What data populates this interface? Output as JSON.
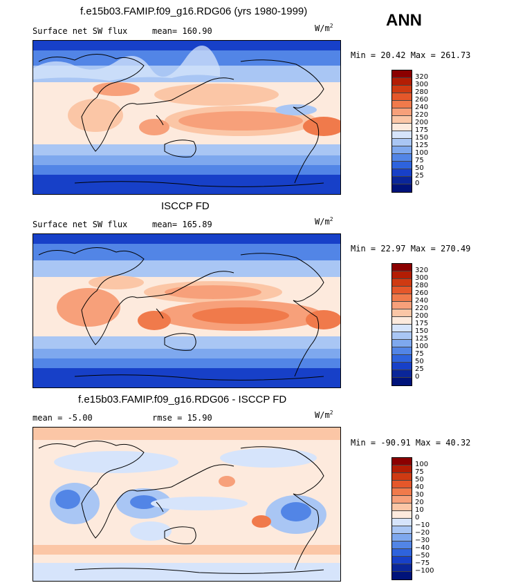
{
  "season": "ANN",
  "panels": [
    {
      "title": "f.e15b03.FAMIP.f09_g16.RDG06 (yrs 1980-1999)",
      "left_label": "Surface net SW flux",
      "center_label": "mean= 160.90",
      "units": "W/m",
      "units_exp": "2",
      "minmax": "Min =  20.42 Max = 261.73",
      "legend_labels": [
        "320",
        "300",
        "280",
        "260",
        "240",
        "220",
        "200",
        "175",
        "150",
        "125",
        "100",
        "75",
        "50",
        "25",
        "0"
      ],
      "colors": [
        "#8b0000",
        "#b31d04",
        "#cf3a12",
        "#e5572a",
        "#f07a4b",
        "#f7a07a",
        "#fbc6a6",
        "#fdeadd",
        "#d6e4fb",
        "#a9c6f4",
        "#7ea8ee",
        "#5285e6",
        "#2e63dd",
        "#1740c8",
        "#0a2699",
        "#00137a"
      ],
      "chart_data": {
        "type": "heatmap",
        "title": "f.e15b03.FAMIP.f09_g16.RDG06 (yrs 1980-1999)",
        "variable": "Surface net SW flux",
        "units": "W/m2",
        "mean": 160.9,
        "min": 20.42,
        "max": 261.73,
        "contour_levels": [
          0,
          25,
          50,
          75,
          100,
          125,
          150,
          175,
          200,
          220,
          240,
          260,
          280,
          300,
          320
        ]
      }
    },
    {
      "title": "ISCCP FD",
      "left_label": "Surface net SW flux",
      "center_label": "mean= 165.89",
      "units": "W/m",
      "units_exp": "2",
      "minmax": "Min =  22.97 Max = 270.49",
      "legend_labels": [
        "320",
        "300",
        "280",
        "260",
        "240",
        "220",
        "200",
        "175",
        "150",
        "125",
        "100",
        "75",
        "50",
        "25",
        "0"
      ],
      "colors": [
        "#8b0000",
        "#b31d04",
        "#cf3a12",
        "#e5572a",
        "#f07a4b",
        "#f7a07a",
        "#fbc6a6",
        "#fdeadd",
        "#d6e4fb",
        "#a9c6f4",
        "#7ea8ee",
        "#5285e6",
        "#2e63dd",
        "#1740c8",
        "#0a2699",
        "#00137a"
      ],
      "chart_data": {
        "type": "heatmap",
        "title": "ISCCP FD",
        "variable": "Surface net SW flux",
        "units": "W/m2",
        "mean": 165.89,
        "min": 22.97,
        "max": 270.49,
        "contour_levels": [
          0,
          25,
          50,
          75,
          100,
          125,
          150,
          175,
          200,
          220,
          240,
          260,
          280,
          300,
          320
        ]
      }
    },
    {
      "title": "f.e15b03.FAMIP.f09_g16.RDG06 - ISCCP FD",
      "left_label": "mean =  -5.00",
      "center_label": "rmse =  15.90",
      "units": "W/m",
      "units_exp": "2",
      "minmax": "Min = -90.91 Max =  40.32",
      "legend_labels": [
        "100",
        "75",
        "50",
        "40",
        "30",
        "20",
        "10",
        "0",
        "−10",
        "−20",
        "−30",
        "−40",
        "−50",
        "−75",
        "−100"
      ],
      "colors": [
        "#8b0000",
        "#b31d04",
        "#cf3a12",
        "#e5572a",
        "#f07a4b",
        "#f7a07a",
        "#fbc6a6",
        "#fdeadd",
        "#d6e4fb",
        "#a9c6f4",
        "#7ea8ee",
        "#5285e6",
        "#2e63dd",
        "#1740c8",
        "#0a2699",
        "#00137a"
      ],
      "chart_data": {
        "type": "heatmap",
        "title": "f.e15b03.FAMIP.f09_g16.RDG06 - ISCCP FD",
        "units": "W/m2",
        "mean": -5.0,
        "rmse": 15.9,
        "min": -90.91,
        "max": 40.32,
        "contour_levels": [
          -100,
          -75,
          -50,
          -40,
          -30,
          -20,
          -10,
          0,
          10,
          20,
          30,
          40,
          50,
          75,
          100
        ]
      }
    }
  ]
}
